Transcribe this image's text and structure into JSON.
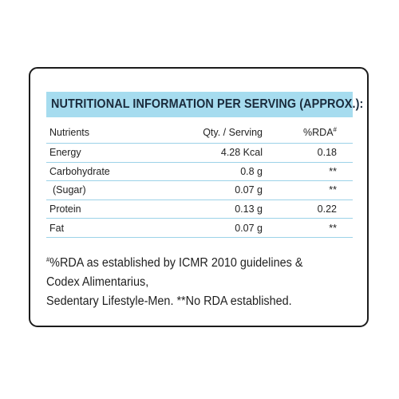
{
  "heading": "NUTRITIONAL INFORMATION PER SERVING (APPROX.):",
  "columns": {
    "nutrients": "Nutrients",
    "qty": "Qty. / Serving",
    "rda": "%RDA",
    "rda_mark": "#"
  },
  "rows": [
    {
      "name": "Energy",
      "qty": "4.28 Kcal",
      "rda": "0.18"
    },
    {
      "name": "Carbohydrate",
      "qty": "0.8 g",
      "rda": "**"
    },
    {
      "name": "(Sugar)",
      "qty": "0.07 g",
      "rda": "**"
    },
    {
      "name": "Protein",
      "qty": "0.13 g",
      "rda": "0.22"
    },
    {
      "name": "Fat",
      "qty": "0.07 g",
      "rda": "**"
    }
  ],
  "footnote": {
    "mark": "#",
    "line1": "%RDA as established by ICMR 2010 guidelines &",
    "line2": "Codex Alimentarius,",
    "line3": "Sedentary Lifestyle-Men. **No RDA established."
  },
  "colors": {
    "heading_bar": "#a6dcef",
    "row_divider": "#9cd2e8",
    "border": "#1c1c1c"
  }
}
